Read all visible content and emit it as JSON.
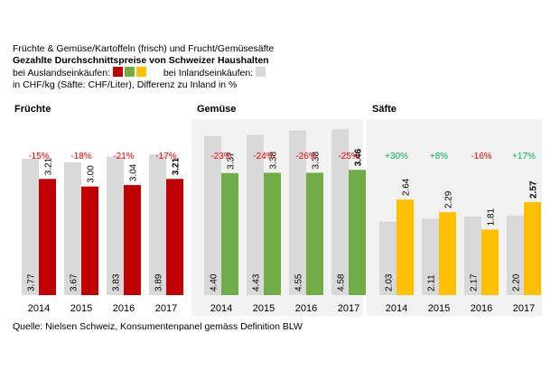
{
  "header": {
    "line1": "Früchte & Gemüse/Kartoffeln (frisch) und Frucht/Gemüsesäfte",
    "line2": "Gezahlte Durchschnittspreise von Schweizer Haushalten",
    "abroad_label": "bei Auslandseinkäufen:",
    "domestic_label": "bei Inlandseinkäufen:",
    "line4": "in CHF/kg (Säfte: CHF/Liter), Differenz zu Inland in %"
  },
  "colors": {
    "domestic": "#d9d9d9",
    "fruit_abroad": "#c00000",
    "veg_abroad": "#70ad47",
    "juice_abroad": "#ffc000",
    "pct_negative": "#ff0000",
    "pct_positive": "#00b050",
    "panel_bg": "#f2f2f2"
  },
  "source": "Quelle: Nielsen Schweiz, Konsumentenpanel gemäss Definition BLW",
  "chart_data": [
    {
      "type": "bar",
      "title": "Früchte",
      "categories": [
        "2014",
        "2015",
        "2016",
        "2017"
      ],
      "series": [
        {
          "values": [
            3.77,
            3.67,
            3.83,
            3.89
          ],
          "labels": [
            "3.77",
            "3.67",
            "3.83",
            "3.89"
          ]
        },
        {
          "values": [
            3.21,
            3.0,
            3.04,
            3.21
          ],
          "labels": [
            "3.21",
            "3.00",
            "3.04",
            "3.21"
          ]
        }
      ],
      "differences": [
        "-15%",
        "-18%",
        "-21%",
        "-17%"
      ],
      "ylim": [
        0,
        4.8
      ]
    },
    {
      "type": "bar",
      "title": "Gemüse",
      "categories": [
        "2014",
        "2015",
        "2016",
        "2017"
      ],
      "series": [
        {
          "values": [
            4.4,
            4.43,
            4.55,
            4.58
          ],
          "labels": [
            "4.40",
            "4.43",
            "4.55",
            "4.58"
          ]
        },
        {
          "values": [
            3.37,
            3.38,
            3.38,
            3.46
          ],
          "labels": [
            "3.37",
            "3.38",
            "3.38",
            "3.46"
          ]
        }
      ],
      "differences": [
        "-23%",
        "-24%",
        "-26%",
        "-25%"
      ],
      "ylim": [
        0,
        4.8
      ]
    },
    {
      "type": "bar",
      "title": "Säfte",
      "categories": [
        "2014",
        "2015",
        "2016",
        "2017"
      ],
      "series": [
        {
          "values": [
            2.03,
            2.11,
            2.17,
            2.2
          ],
          "labels": [
            "2.03",
            "2.11",
            "2.17",
            "2.20"
          ]
        },
        {
          "values": [
            2.64,
            2.29,
            1.81,
            2.57
          ],
          "labels": [
            "2.64",
            "2.29",
            "1.81",
            "2.57"
          ]
        }
      ],
      "differences": [
        "+30%",
        "+8%",
        "-16%",
        "+17%"
      ],
      "ylim": [
        0,
        4.8
      ]
    }
  ]
}
